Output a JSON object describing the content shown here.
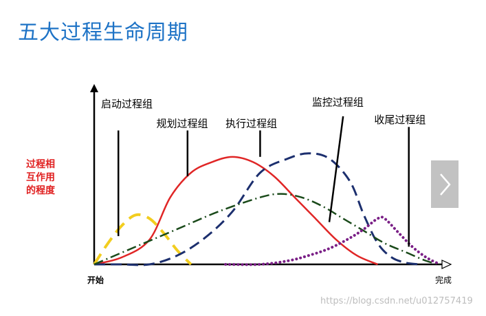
{
  "page": {
    "title": "五大过程生命周期",
    "watermark": "https://blog.csdn.net/u012757419"
  },
  "colors": {
    "title": "#1e73c6",
    "axis": "#000000",
    "ylabel": "#e02020",
    "next_button": "#c2c2c2"
  },
  "icons": {
    "next": "chevron-right-icon"
  },
  "chart_data": {
    "type": "line",
    "ylabel_lines": [
      "过程相",
      "互作用",
      "的程度"
    ],
    "x_start_label": "开始",
    "x_end_label": "完成",
    "xlim": [
      0,
      100
    ],
    "ylim": [
      0,
      100
    ],
    "grid": false,
    "series": [
      {
        "name": "启动过程组",
        "color": "#f2cd1f",
        "dash": "18,10",
        "width": 4,
        "label_pos": [
          2,
          89
        ],
        "pointer_from": [
          7,
          76
        ],
        "pointer_to": [
          7,
          16
        ],
        "x": [
          0,
          4,
          8,
          12,
          16,
          20,
          24,
          28
        ],
        "y": [
          0,
          12,
          22,
          28,
          26,
          18,
          8,
          0
        ]
      },
      {
        "name": "规划过程组",
        "color": "#e02626",
        "dash": "",
        "width": 2.5,
        "label_pos": [
          18,
          78
        ],
        "pointer_from": [
          27,
          76
        ],
        "pointer_to": [
          27,
          50
        ],
        "x": [
          0,
          8,
          16,
          22,
          28,
          34,
          40,
          46,
          52,
          58,
          64,
          70,
          76,
          82
        ],
        "y": [
          0,
          4,
          14,
          38,
          52,
          58,
          61,
          58,
          50,
          38,
          26,
          14,
          5,
          0
        ]
      },
      {
        "name": "执行过程组",
        "color": "#1c2f6e",
        "dash": "16,8",
        "width": 3,
        "label_pos": [
          38,
          78
        ],
        "pointer_from": [
          48,
          76
        ],
        "pointer_to": [
          48,
          61
        ],
        "x": [
          0,
          8,
          16,
          24,
          32,
          40,
          48,
          56,
          62,
          68,
          74,
          78,
          82,
          86,
          90,
          94
        ],
        "y": [
          0,
          0,
          0,
          5,
          15,
          30,
          52,
          60,
          63,
          60,
          47,
          28,
          12,
          4,
          1,
          0
        ]
      },
      {
        "name": "监控过程组",
        "color": "#1a4a1a",
        "dash": "14,5,2,5",
        "width": 2.5,
        "label_pos": [
          63,
          90
        ],
        "pointer_from": [
          72,
          84
        ],
        "pointer_to": [
          68,
          24
        ],
        "x": [
          0,
          12,
          24,
          36,
          48,
          54,
          60,
          66,
          72,
          78,
          84,
          90,
          96,
          100
        ],
        "y": [
          0,
          10,
          20,
          30,
          38,
          40,
          38,
          33,
          26,
          19,
          12,
          7,
          2,
          0
        ]
      },
      {
        "name": "收尾过程组",
        "color": "#7a1f86",
        "dash": "dot",
        "width": 4,
        "label_pos": [
          81,
          80
        ],
        "pointer_from": [
          91,
          78
        ],
        "pointer_to": [
          91,
          10
        ],
        "x": [
          38,
          48,
          56,
          62,
          68,
          74,
          78,
          82,
          84,
          88,
          92,
          96,
          100
        ],
        "y": [
          0,
          0,
          2,
          5,
          9,
          15,
          20,
          26,
          26,
          18,
          10,
          4,
          0
        ]
      }
    ]
  }
}
